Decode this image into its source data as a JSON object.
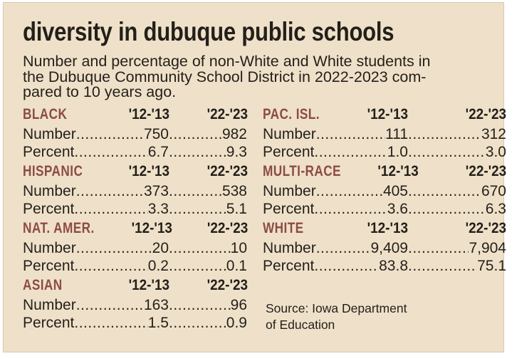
{
  "title": "diversity in dubuque public schools",
  "subtitle_lines": [
    "Number and percentage of non-White and White students in",
    "the Dubuque Community School District in 2022-2023 com-",
    "pared to 10 years ago."
  ],
  "colors": {
    "background": "#efe1c9",
    "category": "#8c4b48",
    "text": "#231f1a"
  },
  "year_labels": [
    "'12-'13",
    "'22-'23"
  ],
  "row_labels": {
    "number": "Number",
    "percent": "Percent"
  },
  "groups": [
    {
      "name": "BLACK",
      "number": [
        "750",
        "982"
      ],
      "percent": [
        "6.7",
        "9.3"
      ]
    },
    {
      "name": "HISPANIC",
      "number": [
        "373",
        "538"
      ],
      "percent": [
        "3.3",
        "5.1"
      ]
    },
    {
      "name": "NAT. AMER.",
      "number": [
        "20",
        "10"
      ],
      "percent": [
        "0.2",
        "0.1"
      ]
    },
    {
      "name": "ASIAN",
      "number": [
        "163",
        "96"
      ],
      "percent": [
        "1.5",
        "0.9"
      ]
    },
    {
      "name": "PAC. ISL.",
      "number": [
        "111",
        "312"
      ],
      "percent": [
        "1.0",
        "3.0"
      ]
    },
    {
      "name": "MULTI-RACE",
      "number": [
        "405",
        "670"
      ],
      "percent": [
        "3.6",
        "6.3"
      ]
    },
    {
      "name": "WHITE",
      "number": [
        "9,409",
        "7,904"
      ],
      "percent": [
        "83.8",
        "75.1"
      ]
    }
  ],
  "source_lines": [
    "Source: Iowa Department",
    "of Education"
  ]
}
